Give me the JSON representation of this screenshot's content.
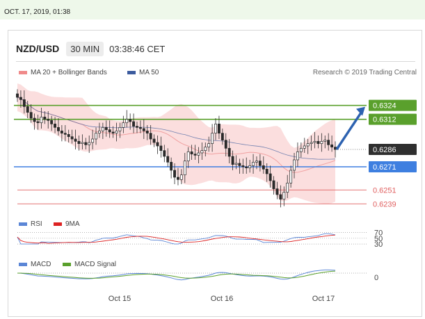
{
  "timestamp": "OCT. 17, 2019, 01:38",
  "header": {
    "symbol": "NZD/USD",
    "timeframe": "30 MIN",
    "clock": "03:38:46 CET"
  },
  "legend": {
    "bollinger": "MA 20 + Bollinger Bands",
    "ma50": "MA 50",
    "rsi": "RSI",
    "rsi_ma": "9MA",
    "macd": "MACD",
    "macd_signal": "MACD Signal"
  },
  "credit": "Research © 2019 Trading Central",
  "colors": {
    "resistance": "#5aa02c",
    "pivot_current": "#333333",
    "support_blue": "#3e7fe0",
    "support_red": "#e06060",
    "bollinger_fill": "#fbdada",
    "ma50": "#3b5b9e",
    "candle": "#2a2a2a",
    "arrow": "#2d62b0"
  },
  "chart_data": [
    {
      "type": "candlestick",
      "x_labels": [
        "Oct 15",
        "Oct 16",
        "Oct 17"
      ],
      "ylim": [
        0.6232,
        0.6346
      ],
      "levels": [
        {
          "label": "0.6324",
          "value": 0.6324,
          "kind": "resistance"
        },
        {
          "label": "0.6312",
          "value": 0.6312,
          "kind": "resistance"
        },
        {
          "label": "0.6286",
          "value": 0.6286,
          "kind": "current"
        },
        {
          "label": "0.6271",
          "value": 0.6271,
          "kind": "pivot"
        },
        {
          "label": "0.6251",
          "value": 0.6251,
          "kind": "support"
        },
        {
          "label": "0.6239",
          "value": 0.6239,
          "kind": "support"
        }
      ],
      "close": [
        0.6331,
        0.6329,
        0.6323,
        0.6318,
        0.6313,
        0.631,
        0.6309,
        0.6314,
        0.6312,
        0.6311,
        0.6308,
        0.6305,
        0.6302,
        0.63,
        0.6299,
        0.6297,
        0.6295,
        0.6293,
        0.6291,
        0.6292,
        0.629,
        0.6292,
        0.6295,
        0.63,
        0.6302,
        0.6305,
        0.6303,
        0.6301,
        0.63,
        0.6302,
        0.6305,
        0.6309,
        0.6312,
        0.631,
        0.6306,
        0.6305,
        0.6304,
        0.6302,
        0.63,
        0.6295,
        0.6292,
        0.6289,
        0.6285,
        0.628,
        0.6275,
        0.6268,
        0.6262,
        0.626,
        0.6264,
        0.6276,
        0.6284,
        0.6282,
        0.6281,
        0.6283,
        0.6285,
        0.6288,
        0.6291,
        0.63,
        0.6308,
        0.63,
        0.6294,
        0.6287,
        0.628,
        0.6273,
        0.6274,
        0.6272,
        0.6271,
        0.627,
        0.6272,
        0.6275,
        0.6276,
        0.6272,
        0.6269,
        0.6265,
        0.6259,
        0.6252,
        0.6247,
        0.6243,
        0.6249,
        0.6257,
        0.6268,
        0.6277,
        0.6284,
        0.6287,
        0.6289,
        0.6291,
        0.6292,
        0.6293,
        0.6291,
        0.6293,
        0.6294,
        0.629,
        0.6288,
        0.6286
      ],
      "rsi": {
        "levels": [
          70,
          50,
          30
        ]
      },
      "macd": {
        "levels": [
          0
        ]
      },
      "target_arrow": {
        "from": 0.6286,
        "to": 0.6324
      }
    }
  ]
}
